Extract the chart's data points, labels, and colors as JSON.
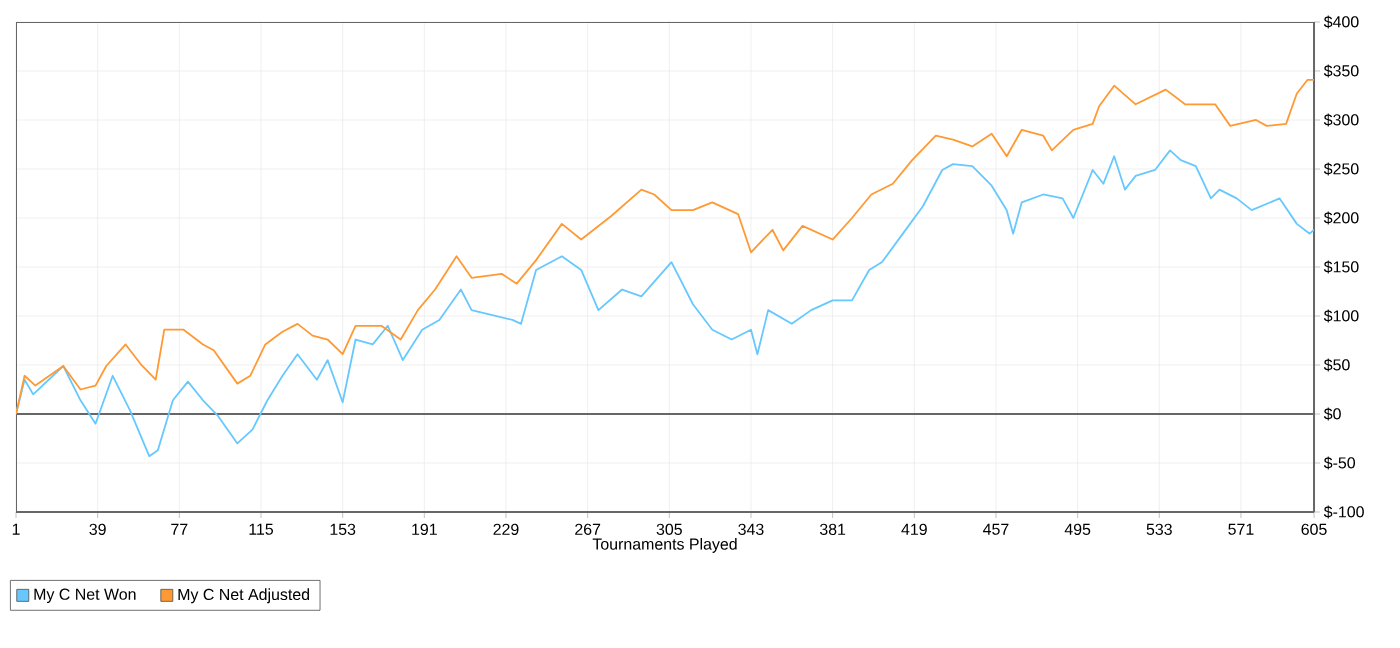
{
  "chart_data": {
    "type": "line",
    "xlabel": "Tournaments Played",
    "xlim": [
      1,
      605
    ],
    "xticks": [
      1,
      39,
      77,
      115,
      153,
      191,
      229,
      267,
      305,
      343,
      381,
      419,
      457,
      495,
      533,
      571,
      605
    ],
    "ylim": [
      -100,
      400
    ],
    "yticks": [
      {
        "value": -100,
        "label": "$-100"
      },
      {
        "value": -50,
        "label": "$-50"
      },
      {
        "value": 0,
        "label": "$0"
      },
      {
        "value": 50,
        "label": "$50"
      },
      {
        "value": 100,
        "label": "$100"
      },
      {
        "value": 150,
        "label": "$150"
      },
      {
        "value": 200,
        "label": "$200"
      },
      {
        "value": 250,
        "label": "$250"
      },
      {
        "value": 300,
        "label": "$300"
      },
      {
        "value": 350,
        "label": "$350"
      },
      {
        "value": 400,
        "label": "$400"
      }
    ],
    "grid": true,
    "legend": "bottom left",
    "ref_lines": [
      {
        "axis": "y",
        "value": 0,
        "color": "#666666"
      }
    ],
    "series": [
      {
        "name": "My C Net Won",
        "color": "#66c8ff",
        "x": [
          1,
          5,
          9,
          23,
          31,
          38,
          46,
          54,
          63,
          67,
          74,
          81,
          88,
          95,
          104,
          111,
          118,
          125,
          132,
          141,
          146,
          153,
          159,
          167,
          174,
          181,
          190,
          198,
          208,
          213,
          232,
          236,
          243,
          255,
          264,
          272,
          283,
          292,
          306,
          316,
          325,
          334,
          343,
          346,
          351,
          362,
          371,
          381,
          390,
          398,
          404,
          413,
          423,
          432,
          437,
          446,
          455,
          462,
          465,
          469,
          479,
          488,
          493,
          502,
          507,
          512,
          517,
          522,
          531,
          538,
          543,
          550,
          557,
          561,
          569,
          576,
          589,
          597,
          603,
          605
        ],
        "values": [
          0,
          35,
          20,
          49,
          14,
          -10,
          39,
          4,
          -43,
          -37,
          14,
          33,
          14,
          -2,
          -30,
          -16,
          14,
          39,
          61,
          35,
          55,
          12,
          76,
          71,
          90,
          55,
          86,
          96,
          127,
          106,
          96,
          92,
          147,
          161,
          147,
          106,
          127,
          120,
          155,
          112,
          86,
          76,
          86,
          61,
          106,
          92,
          106,
          116,
          116,
          147,
          155,
          182,
          212,
          249,
          255,
          253,
          233,
          208,
          184,
          216,
          224,
          220,
          200,
          249,
          235,
          263,
          229,
          243,
          249,
          269,
          259,
          253,
          220,
          229,
          220,
          208,
          220,
          194,
          184,
          188
        ]
      },
      {
        "name": "My C Net Adjusted",
        "color": "#ff9933",
        "x": [
          1,
          5,
          10,
          23,
          31,
          38,
          43,
          52,
          59,
          66,
          70,
          79,
          88,
          93,
          104,
          110,
          117,
          125,
          132,
          139,
          146,
          153,
          159,
          171,
          180,
          188,
          196,
          206,
          213,
          227,
          234,
          243,
          255,
          264,
          278,
          292,
          298,
          306,
          316,
          325,
          337,
          343,
          353,
          358,
          367,
          381,
          390,
          399,
          409,
          418,
          429,
          437,
          446,
          455,
          462,
          469,
          479,
          483,
          493,
          502,
          505,
          512,
          522,
          536,
          545,
          559,
          566,
          578,
          583,
          592,
          597,
          602,
          605
        ],
        "values": [
          0,
          39,
          29,
          49,
          25,
          29,
          49,
          71,
          51,
          35,
          86,
          86,
          71,
          65,
          31,
          39,
          71,
          84,
          92,
          80,
          76,
          61,
          90,
          90,
          76,
          106,
          127,
          161,
          139,
          143,
          133,
          157,
          194,
          178,
          202,
          229,
          224,
          208,
          208,
          216,
          204,
          165,
          188,
          167,
          192,
          178,
          200,
          224,
          235,
          259,
          284,
          280,
          273,
          286,
          263,
          290,
          284,
          269,
          290,
          296,
          314,
          335,
          316,
          331,
          316,
          316,
          294,
          300,
          294,
          296,
          327,
          341,
          341
        ]
      }
    ]
  }
}
